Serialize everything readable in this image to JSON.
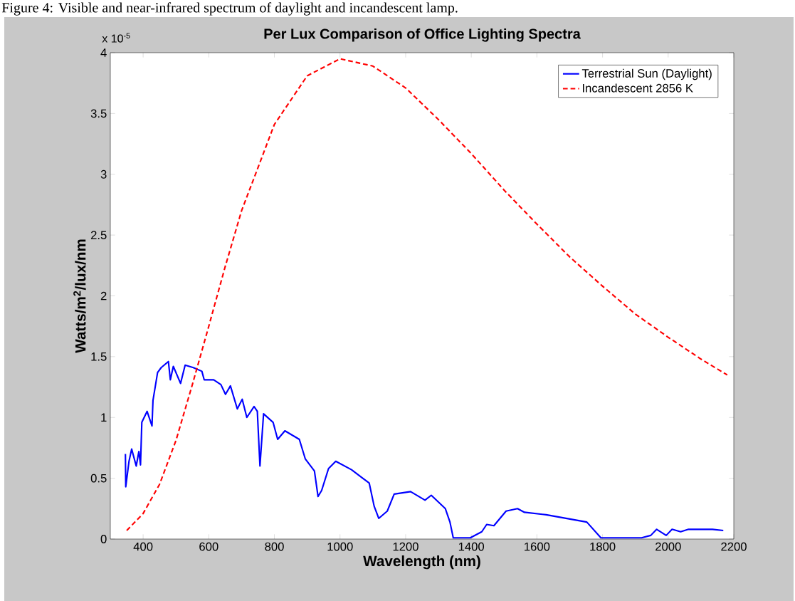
{
  "chart_data": {
    "type": "line",
    "title": "Per Lux Comparison of Office Lighting Spectra",
    "xlabel": "Wavelength (nm)",
    "ylabel": "Watts/m$^{2}$/lux/nm",
    "annotations": [
      "x 10$^{-5}$",
      "Figure 4: Visible and near-infrared spectrum of daylight and incandescent lamp."
    ],
    "xlim": [
      300,
      2200
    ],
    "ylim": [
      0,
      4
    ],
    "xticks": [
      400,
      600,
      800,
      1000,
      1200,
      1400,
      1600,
      1800,
      2000,
      2200
    ],
    "yticks": [
      0,
      0.5,
      1,
      1.5,
      2,
      2.5,
      3,
      3.5,
      4
    ],
    "grid": false,
    "legend": "top right",
    "series": [
      {
        "name": "Terrestrial Sun (Daylight)",
        "color": "#0000ff",
        "line_style": "solid",
        "x": [
          346,
          347,
          357,
          365,
          379,
          387,
          392,
          396,
          412,
          427,
          430,
          444,
          455,
          477,
          483,
          492,
          514,
          528,
          553,
          579,
          586,
          615,
          637,
          651,
          666,
          687,
          702,
          716,
          738,
          748,
          756,
          767,
          796,
          810,
          832,
          876,
          894,
          922,
          933,
          944,
          965,
          987,
          1035,
          1089,
          1104,
          1118,
          1144,
          1165,
          1215,
          1259,
          1278,
          1321,
          1335,
          1345,
          1397,
          1432,
          1447,
          1469,
          1506,
          1541,
          1562,
          1628,
          1752,
          1795,
          1919,
          1947,
          1965,
          1994,
          2012,
          2038,
          2062,
          2135,
          2168
        ],
        "values": [
          0.7,
          0.43,
          0.64,
          0.74,
          0.6,
          0.72,
          0.61,
          0.96,
          1.05,
          0.93,
          1.14,
          1.37,
          1.41,
          1.46,
          1.31,
          1.42,
          1.28,
          1.43,
          1.41,
          1.38,
          1.31,
          1.31,
          1.27,
          1.19,
          1.26,
          1.07,
          1.15,
          1.0,
          1.09,
          1.05,
          0.6,
          1.03,
          0.96,
          0.82,
          0.89,
          0.82,
          0.66,
          0.56,
          0.35,
          0.4,
          0.58,
          0.64,
          0.57,
          0.46,
          0.27,
          0.17,
          0.23,
          0.37,
          0.39,
          0.32,
          0.36,
          0.25,
          0.14,
          0.01,
          0.01,
          0.06,
          0.12,
          0.11,
          0.23,
          0.25,
          0.22,
          0.2,
          0.14,
          0.01,
          0.01,
          0.03,
          0.08,
          0.03,
          0.08,
          0.06,
          0.08,
          0.08,
          0.07
        ]
      },
      {
        "name": "Incandescent 2856 K",
        "color": "#ff0000",
        "line_style": "dashed",
        "x": [
          350,
          400,
          450,
          500,
          550,
          600,
          650,
          700,
          800,
          900,
          1000,
          1100,
          1200,
          1300,
          1400,
          1500,
          1600,
          1700,
          1800,
          1900,
          2000,
          2100,
          2180
        ],
        "values": [
          0.07,
          0.21,
          0.45,
          0.81,
          1.27,
          1.75,
          2.24,
          2.7,
          3.41,
          3.81,
          3.95,
          3.89,
          3.71,
          3.45,
          3.17,
          2.87,
          2.59,
          2.32,
          2.08,
          1.85,
          1.66,
          1.48,
          1.35
        ]
      }
    ]
  }
}
